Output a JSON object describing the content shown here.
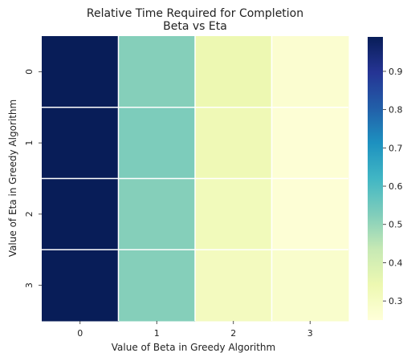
{
  "chart_data": {
    "type": "heatmap",
    "title": "Relative Time Required for Completion",
    "subtitle": "Beta vs Eta",
    "xlabel": "Value of Beta in Greedy Algorithm",
    "ylabel": "Value of Eta in Greedy Algorithm",
    "x_categories": [
      "0",
      "1",
      "2",
      "3"
    ],
    "y_categories": [
      "0",
      "1",
      "2",
      "3"
    ],
    "values": [
      [
        0.99,
        0.52,
        0.34,
        0.27
      ],
      [
        0.99,
        0.53,
        0.33,
        0.26
      ],
      [
        0.99,
        0.52,
        0.32,
        0.26
      ],
      [
        0.99,
        0.52,
        0.31,
        0.28
      ]
    ],
    "colormap": "YlGnBu",
    "vmin": 0.25,
    "vmax": 0.99,
    "colorbar_ticks": [
      0.3,
      0.4,
      0.5,
      0.6,
      0.7,
      0.8,
      0.9
    ],
    "colorbar_tick_labels": [
      "0.3",
      "0.4",
      "0.5",
      "0.6",
      "0.7",
      "0.8",
      "0.9"
    ],
    "grid_line_color": "#ffffff"
  }
}
